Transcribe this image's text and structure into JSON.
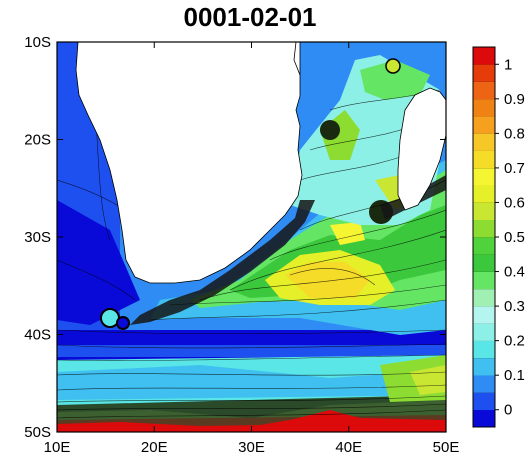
{
  "title": "0001-02-01",
  "map": {
    "lon_ticks": [
      "10E",
      "20E",
      "30E",
      "40E",
      "50E"
    ],
    "lat_ticks": [
      "10S",
      "20S",
      "30S",
      "40S",
      "50S"
    ],
    "lon_range": [
      10,
      50
    ],
    "lat_range": [
      -10,
      -50
    ]
  },
  "colorbar": {
    "labels": [
      "0",
      "0.1",
      "0.2",
      "0.3",
      "0.4",
      "0.5",
      "0.6",
      "0.7",
      "0.8",
      "0.9",
      "1"
    ],
    "range": [
      -0.05,
      1.05
    ],
    "colors": [
      "#0a0ad8",
      "#1e50f0",
      "#2f8cf5",
      "#3fc0f0",
      "#5ae6e6",
      "#8cf0e6",
      "#b4f5f0",
      "#a0f0b4",
      "#64e664",
      "#3cc83c",
      "#50d23c",
      "#8cdc32",
      "#c8e632",
      "#e6f028",
      "#f5f532",
      "#f5dc28",
      "#f5c828",
      "#f5a01e",
      "#f08214",
      "#ec6414",
      "#e63c0a",
      "#dc0a0a"
    ]
  }
}
